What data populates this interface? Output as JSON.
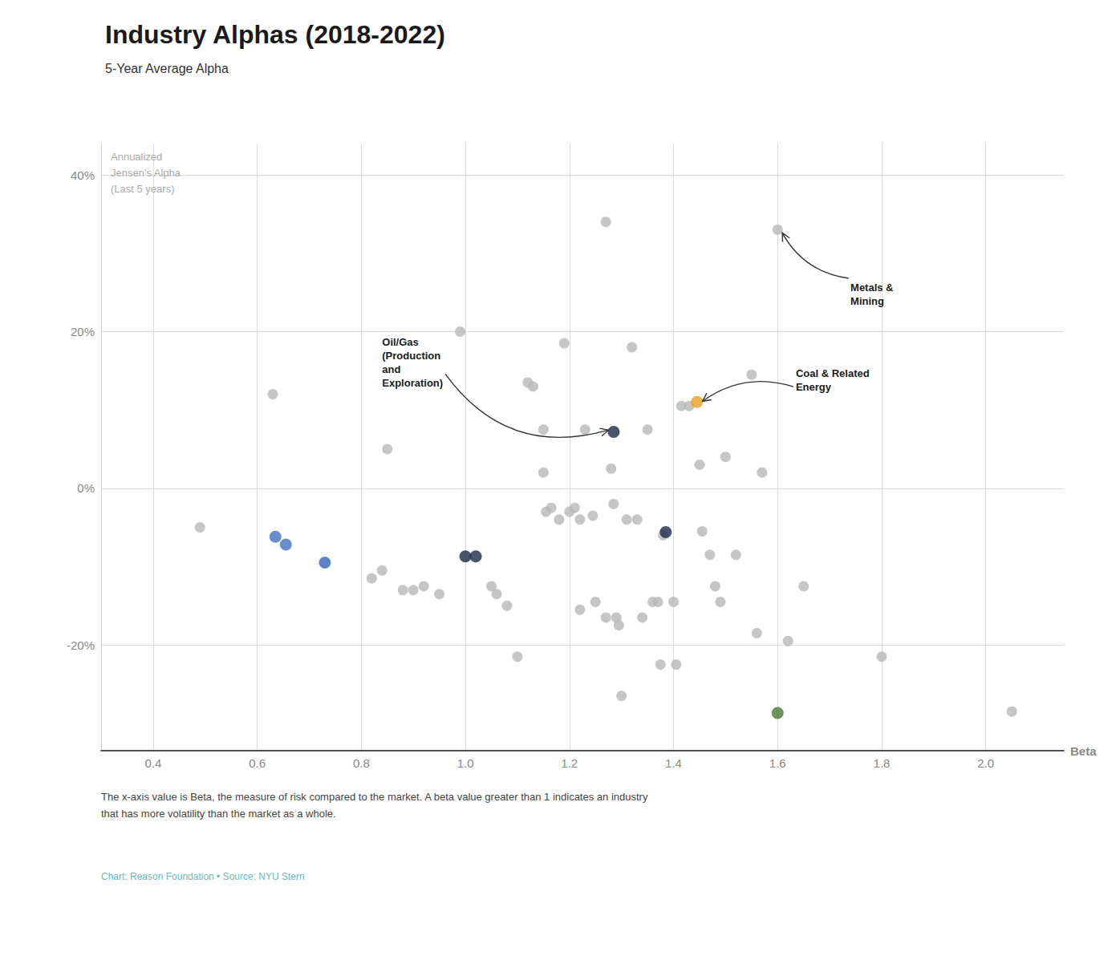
{
  "chart_data": {
    "type": "scatter",
    "title": "Industry Alphas (2018-2022)",
    "subtitle": "5-Year Average Alpha",
    "ylabel": "Annualized\nJensen's Alpha\n(Last 5 years)",
    "xlabel": "Beta",
    "footnote": "The x-axis value is Beta, the measure of risk compared to the market. A beta value greater than 1 indicates an industry\nthat has more volatility than the market as a whole.",
    "source": "Chart: Reason Foundation • Source: NYU Stern",
    "xlim": [
      0.3,
      2.15
    ],
    "ylim": [
      -0.335,
      0.44
    ],
    "xticks": [
      0.4,
      0.6,
      0.8,
      {
        "value": 1.0,
        "label": "1.0"
      },
      1.2,
      1.4,
      1.6,
      1.8,
      {
        "value": 2.0,
        "label": "2.0"
      }
    ],
    "yticks": [
      {
        "value": -0.2,
        "label": "-20%"
      },
      {
        "value": 0.0,
        "label": "0%"
      },
      {
        "value": 0.2,
        "label": "20%"
      },
      {
        "value": 0.4,
        "label": "40%"
      }
    ],
    "grid": true,
    "series": [
      {
        "color": "#B8B8B8",
        "x": [
          0.49,
          0.63,
          0.73,
          0.82,
          0.84,
          0.85,
          0.88,
          0.9,
          0.92,
          0.95,
          0.99,
          1.05,
          1.06,
          1.08,
          1.1,
          1.12,
          1.13,
          1.15,
          1.15,
          1.155,
          1.165,
          1.18,
          1.19,
          1.2,
          1.21,
          1.22,
          1.22,
          1.23,
          1.245,
          1.25,
          1.27,
          1.27,
          1.28,
          1.285,
          1.29,
          1.295,
          1.3,
          1.31,
          1.32,
          1.33,
          1.34,
          1.35,
          1.36,
          1.37,
          1.375,
          1.38,
          1.4,
          1.405,
          1.415,
          1.43,
          1.45,
          1.455,
          1.47,
          1.48,
          1.49,
          1.5,
          1.52,
          1.55,
          1.56,
          1.57,
          1.6,
          1.62,
          1.65,
          1.8,
          2.05
        ],
        "values": [
          -0.05,
          0.12,
          -0.095,
          -0.115,
          -0.105,
          0.05,
          -0.13,
          -0.13,
          -0.125,
          -0.135,
          0.2,
          -0.125,
          -0.135,
          -0.15,
          -0.215,
          0.135,
          0.13,
          0.075,
          0.02,
          -0.03,
          -0.025,
          -0.04,
          0.185,
          -0.03,
          -0.025,
          -0.04,
          -0.155,
          0.075,
          -0.035,
          -0.145,
          0.34,
          -0.165,
          0.025,
          -0.02,
          -0.165,
          -0.175,
          -0.265,
          -0.04,
          0.18,
          -0.04,
          -0.165,
          0.075,
          -0.145,
          -0.145,
          -0.225,
          -0.06,
          -0.145,
          -0.225,
          0.105,
          0.105,
          0.03,
          -0.055,
          -0.085,
          -0.125,
          -0.145,
          0.04,
          -0.085,
          0.145,
          -0.185,
          0.02,
          0.33,
          -0.195,
          -0.125,
          -0.215,
          -0.285
        ]
      },
      {
        "colors": [
          "#4472C4",
          "#4472C4",
          "#4472C4",
          "#1C2B4A",
          "#1C2B4A",
          "#1C2B4A",
          "#1C2B4A",
          "#E8A020",
          "#4A7B32"
        ],
        "x": [
          0.635,
          0.655,
          0.73,
          1.0,
          1.02,
          1.285,
          1.385,
          1.445,
          1.6
        ],
        "values": [
          -0.062,
          -0.072,
          -0.095,
          -0.087,
          -0.087,
          0.072,
          -0.056,
          0.11,
          -0.287
        ]
      }
    ],
    "annotations": [
      {
        "text": "Metals &\nMining",
        "xy": [
          1.6,
          0.33
        ],
        "xytext": [
          1.74,
          0.265
        ]
      },
      {
        "text": "Oil/Gas\n(Production\nand\nExploration)",
        "xy": [
          1.285,
          0.072
        ],
        "xytext": [
          0.84,
          0.195
        ]
      },
      {
        "text": "Coal & Related\nEnergy",
        "xy": [
          1.445,
          0.11
        ],
        "xytext": [
          1.635,
          0.155
        ]
      }
    ]
  }
}
